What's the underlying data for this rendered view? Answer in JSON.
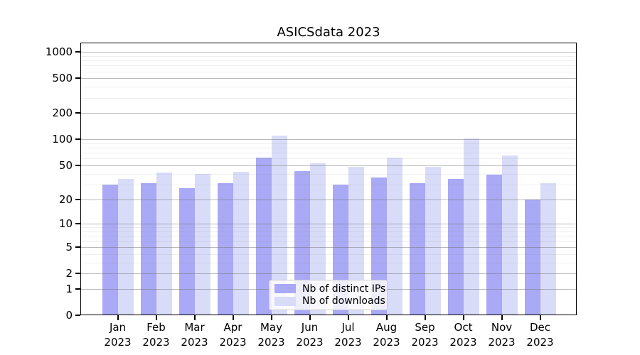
{
  "figure": {
    "title": "ASICSdata 2023"
  },
  "chart_data": {
    "type": "bar",
    "title": "ASICSdata 2023",
    "xlabel": "",
    "ylabel": "",
    "y_scale": "symlog ln(1+x)",
    "ylim": [
      0,
      1280
    ],
    "grid": true,
    "legend_position": "lower center",
    "categories": [
      "Jan 2023",
      "Feb 2023",
      "Mar 2023",
      "Apr 2023",
      "May 2023",
      "Jun 2023",
      "Jul 2023",
      "Aug 2023",
      "Sep 2023",
      "Oct 2023",
      "Nov 2023",
      "Dec 2023"
    ],
    "series": [
      {
        "name": "Nb of distinct IPs",
        "color": "#a9a9f5",
        "values": [
          30,
          31,
          27,
          31,
          62,
          43,
          30,
          36,
          31,
          35,
          39,
          20
        ]
      },
      {
        "name": "Nb of downloads",
        "color": "#d9dcf9",
        "values": [
          35,
          41,
          40,
          42,
          110,
          53,
          48,
          62,
          48,
          103,
          65,
          31
        ]
      }
    ],
    "yticks": [
      0,
      1,
      2,
      5,
      10,
      20,
      50,
      100,
      200,
      500,
      1000
    ],
    "ytick_labels": [
      "0",
      "1",
      "2",
      "5",
      "10",
      "20",
      "50",
      "100",
      "200",
      "500",
      "1000"
    ],
    "minor_yticks": [
      3,
      4,
      6,
      7,
      8,
      9,
      30,
      40,
      60,
      70,
      80,
      90,
      300,
      400,
      600,
      700,
      800,
      900
    ]
  },
  "legend": {
    "items": [
      {
        "label": "Nb of distinct IPs"
      },
      {
        "label": "Nb of downloads"
      }
    ]
  },
  "colors": {
    "bar_distinct_ips": "#a9a9f5",
    "bar_downloads": "#d9dcf9",
    "grid_major": "#b0b0b0",
    "grid_minor": "#ebebeb",
    "axis": "#000000"
  }
}
